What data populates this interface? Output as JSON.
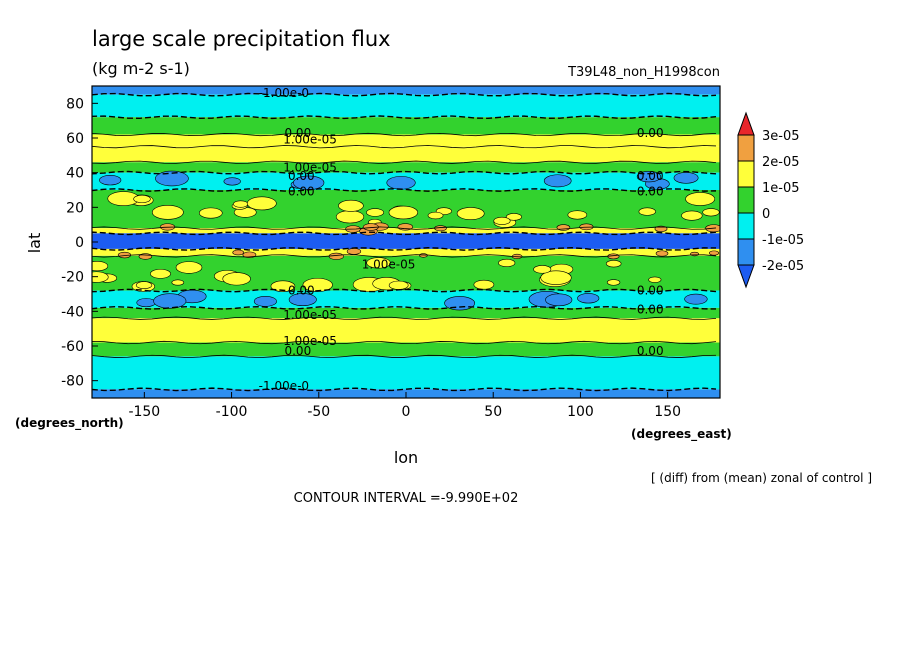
{
  "chart_data": {
    "type": "heatmap",
    "title": "large scale precipitation flux",
    "subtitle": "(kg m-2 s-1)",
    "run_label": "T39L48_non_H1998con",
    "xlabel": "lon",
    "xunits": "(degrees_east)",
    "ylabel": "lat",
    "yunits": "(degrees_north)",
    "xlim": [
      -180,
      180
    ],
    "ylim": [
      -90,
      90
    ],
    "x_ticks": [
      -150,
      -100,
      -50,
      0,
      50,
      100,
      150
    ],
    "y_ticks": [
      80,
      60,
      40,
      20,
      0,
      -20,
      -40,
      -60,
      -80
    ],
    "colorbar": {
      "labels": [
        "3e-05",
        "2e-05",
        "1e-05",
        "0",
        "-1e-05",
        "-2e-05"
      ],
      "colors": [
        "#e8262b",
        "#f0a040",
        "#ffff3a",
        "#33d22e",
        "#00f0f0",
        "#2f8ff0",
        "#1c5cf2"
      ],
      "levels": [
        -2e-05,
        -1e-05,
        0,
        1e-05,
        2e-05,
        3e-05
      ]
    },
    "zonal_bands": [
      {
        "lat_from": 90,
        "lat_to": 85,
        "color": "#2f8ff0"
      },
      {
        "lat_from": 85,
        "lat_to": 72,
        "color": "#00f0f0"
      },
      {
        "lat_from": 72,
        "lat_to": 62,
        "color": "#33d22e"
      },
      {
        "lat_from": 62,
        "lat_to": 55,
        "color": "#ffff3a"
      },
      {
        "lat_from": 55,
        "lat_to": 46,
        "color": "#ffff3a"
      },
      {
        "lat_from": 46,
        "lat_to": 40,
        "color": "#33d22e"
      },
      {
        "lat_from": 40,
        "lat_to": 30,
        "color": "#00f0f0"
      },
      {
        "lat_from": 30,
        "lat_to": 8,
        "color": "#33d22e"
      },
      {
        "lat_from": 8,
        "lat_to": 5,
        "color": "#ffff3a"
      },
      {
        "lat_from": 5,
        "lat_to": -4,
        "color": "#1c5cf2"
      },
      {
        "lat_from": -4,
        "lat_to": -8,
        "color": "#ffff3a"
      },
      {
        "lat_from": -8,
        "lat_to": -28,
        "color": "#33d22e"
      },
      {
        "lat_from": -28,
        "lat_to": -38,
        "color": "#00f0f0"
      },
      {
        "lat_from": -38,
        "lat_to": -44,
        "color": "#33d22e"
      },
      {
        "lat_from": -44,
        "lat_to": -58,
        "color": "#ffff3a"
      },
      {
        "lat_from": -58,
        "lat_to": -66,
        "color": "#33d22e"
      },
      {
        "lat_from": -66,
        "lat_to": -85,
        "color": "#00f0f0"
      },
      {
        "lat_from": -85,
        "lat_to": -90,
        "color": "#2f8ff0"
      }
    ],
    "contour_labels": [
      {
        "text": "-1.00e-0",
        "lon": -70,
        "lat": 86
      },
      {
        "text": "0.00",
        "lon": -62,
        "lat": 63
      },
      {
        "text": "1.00e-05",
        "lon": -55,
        "lat": 59
      },
      {
        "text": "0.00",
        "lon": 140,
        "lat": 63
      },
      {
        "text": "1.00e-05",
        "lon": -55,
        "lat": 43
      },
      {
        "text": "0.00",
        "lon": -60,
        "lat": 38
      },
      {
        "text": "0.00",
        "lon": 140,
        "lat": 38
      },
      {
        "text": "0.00",
        "lon": -60,
        "lat": 29
      },
      {
        "text": "0.00",
        "lon": 140,
        "lat": 29
      },
      {
        "text": "1.00e-05",
        "lon": -10,
        "lat": -13
      },
      {
        "text": "0.00",
        "lon": -60,
        "lat": -28
      },
      {
        "text": "0.00",
        "lon": 140,
        "lat": -28
      },
      {
        "text": "1.00e-05",
        "lon": -55,
        "lat": -42
      },
      {
        "text": "0.00",
        "lon": 140,
        "lat": -39
      },
      {
        "text": "1.00e-05",
        "lon": -55,
        "lat": -57
      },
      {
        "text": "0.00",
        "lon": -62,
        "lat": -63
      },
      {
        "text": "0.00",
        "lon": 140,
        "lat": -63
      },
      {
        "text": "-1.00e-0",
        "lon": -70,
        "lat": -83
      }
    ]
  },
  "footer": {
    "diff_note": "[ (diff) from (mean) zonal of control ]",
    "contour_interval": "CONTOUR INTERVAL =-9.990E+02"
  }
}
